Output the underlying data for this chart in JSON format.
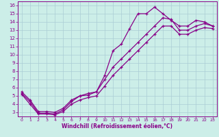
{
  "xlabel": "Windchill (Refroidissement éolien,°C)",
  "bg_color": "#cceee8",
  "grid_color": "#aaccd4",
  "line_color": "#880088",
  "xlim": [
    -0.5,
    23.5
  ],
  "ylim": [
    2.5,
    16.5
  ],
  "xticks": [
    0,
    1,
    2,
    3,
    4,
    5,
    6,
    7,
    8,
    9,
    10,
    11,
    12,
    13,
    14,
    15,
    16,
    17,
    18,
    19,
    20,
    21,
    22,
    23
  ],
  "yticks": [
    3,
    4,
    5,
    6,
    7,
    8,
    9,
    10,
    11,
    12,
    13,
    14,
    15,
    16
  ],
  "line1_x": [
    0,
    1,
    2,
    3,
    4,
    5,
    6,
    7,
    8,
    9,
    10,
    11,
    12,
    13,
    14,
    15,
    16,
    17,
    18,
    19,
    20,
    21,
    22,
    23
  ],
  "line1_y": [
    5.5,
    4.5,
    3.1,
    3.1,
    3.0,
    3.5,
    4.5,
    5.0,
    5.1,
    5.5,
    7.5,
    10.5,
    11.3,
    13.2,
    15.0,
    15.0,
    15.8,
    15.0,
    14.2,
    13.5,
    13.5,
    14.2,
    14.0,
    13.5
  ],
  "line2_x": [
    0,
    1,
    2,
    3,
    4,
    5,
    6,
    7,
    8,
    9,
    10,
    11,
    12,
    13,
    14,
    15,
    16,
    17,
    18,
    19,
    20,
    21,
    22,
    23
  ],
  "line2_y": [
    5.3,
    4.3,
    2.9,
    2.9,
    2.8,
    3.3,
    4.3,
    5.0,
    5.3,
    5.5,
    7.0,
    8.5,
    9.5,
    10.5,
    11.5,
    12.5,
    13.5,
    14.5,
    14.3,
    13.0,
    13.0,
    13.5,
    13.8,
    13.5
  ],
  "line3_x": [
    0,
    1,
    2,
    3,
    4,
    5,
    6,
    7,
    8,
    9,
    10,
    11,
    12,
    13,
    14,
    15,
    16,
    17,
    18,
    19,
    20,
    21,
    22,
    23
  ],
  "line3_y": [
    5.2,
    4.0,
    2.8,
    2.8,
    2.7,
    3.1,
    4.0,
    4.5,
    4.8,
    5.0,
    6.2,
    7.5,
    8.5,
    9.5,
    10.5,
    11.5,
    12.5,
    13.5,
    13.5,
    12.5,
    12.5,
    13.0,
    13.3,
    13.2
  ]
}
